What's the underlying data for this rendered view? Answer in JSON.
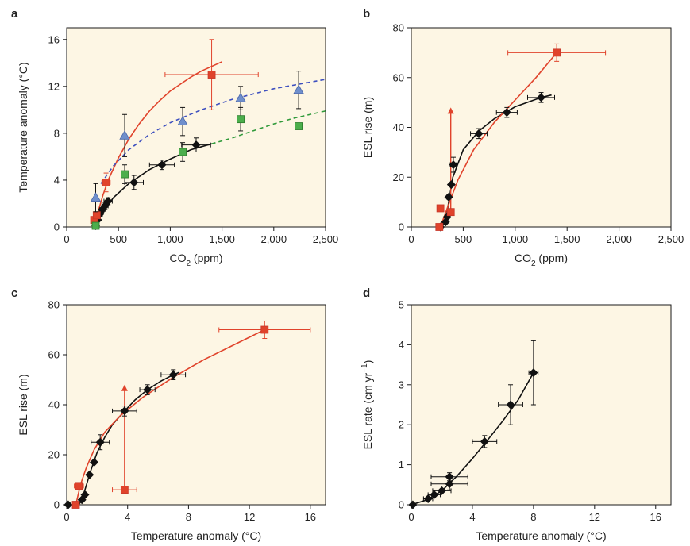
{
  "colors": {
    "black": "#111111",
    "red": "#e0432b",
    "red_marker": "#ea5a47",
    "blue": "#6f8fcc",
    "blue_dash": "#3d4fbf",
    "green": "#4cae4c",
    "green_dash": "#2f9a3a",
    "plot_bg": "#fdf6e4"
  },
  "chart_data": [
    {
      "panel": "a",
      "type": "scatter",
      "xlabel": "CO2 (ppm)",
      "ylabel": "Temperature anomaly (°C)",
      "xlim": [
        0,
        2500
      ],
      "ylim": [
        0,
        17
      ],
      "xticks": [
        0,
        500,
        1000,
        1500,
        2000,
        2500
      ],
      "xtick_labels": [
        "0",
        "500",
        "1,000",
        "1,500",
        "2,000",
        "2,500"
      ],
      "yticks": [
        0,
        4,
        8,
        12,
        16
      ],
      "ytick_labels": [
        "0",
        "4",
        "8",
        "12",
        "16"
      ],
      "series": [
        {
          "marker": "diamond",
          "color": "black",
          "points": [
            {
              "x": 280,
              "y": 0.1,
              "xerr": 0,
              "yerr": 0
            },
            {
              "x": 300,
              "y": 0.6,
              "xerr": 0,
              "yerr": 0
            },
            {
              "x": 320,
              "y": 1.1,
              "xerr": 25,
              "yerr": 0.2
            },
            {
              "x": 345,
              "y": 1.5,
              "xerr": 25,
              "yerr": 0.3
            },
            {
              "x": 370,
              "y": 1.8,
              "xerr": 30,
              "yerr": 0.3
            },
            {
              "x": 400,
              "y": 2.2,
              "xerr": 40,
              "yerr": 0.3
            },
            {
              "x": 650,
              "y": 3.8,
              "xerr": 90,
              "yerr": 0.6
            },
            {
              "x": 920,
              "y": 5.3,
              "xerr": 120,
              "yerr": 0.4
            },
            {
              "x": 1250,
              "y": 7.0,
              "xerr": 140,
              "yerr": 0.6
            }
          ]
        },
        {
          "marker": "square",
          "color": "red",
          "points": [
            {
              "x": 265,
              "y": 0.6,
              "xerr": 0,
              "yerr": 0
            },
            {
              "x": 290,
              "y": 1.0,
              "xerr": 0,
              "yerr": 0
            },
            {
              "x": 380,
              "y": 3.8,
              "xerr": 40,
              "yerr": 0.8
            },
            {
              "x": 1400,
              "y": 13.0,
              "xerr": 450,
              "yerr": 3.0
            }
          ]
        },
        {
          "marker": "triangle",
          "color": "blue",
          "points": [
            {
              "x": 280,
              "y": 2.5,
              "xerr": 0,
              "yerr": 1.2
            },
            {
              "x": 560,
              "y": 7.8,
              "xerr": 0,
              "yerr": 1.8
            },
            {
              "x": 1120,
              "y": 9.0,
              "xerr": 0,
              "yerr": 1.2
            },
            {
              "x": 1680,
              "y": 11.0,
              "xerr": 0,
              "yerr": 1.0
            },
            {
              "x": 2240,
              "y": 11.7,
              "xerr": 0,
              "yerr": 1.6
            }
          ]
        },
        {
          "marker": "square",
          "color": "green",
          "points": [
            {
              "x": 280,
              "y": 0.1,
              "xerr": 0,
              "yerr": 0
            },
            {
              "x": 560,
              "y": 4.5,
              "xerr": 0,
              "yerr": 0.8
            },
            {
              "x": 1120,
              "y": 6.4,
              "xerr": 0,
              "yerr": 0.8
            },
            {
              "x": 1680,
              "y": 9.2,
              "xerr": 0,
              "yerr": 1.0
            },
            {
              "x": 2240,
              "y": 8.6,
              "xerr": 0,
              "yerr": 0.2
            }
          ]
        }
      ],
      "curves": [
        {
          "color": "red",
          "dash": false,
          "points": [
            [
              270,
              0
            ],
            [
              300,
              1.2
            ],
            [
              350,
              2.7
            ],
            [
              400,
              4.0
            ],
            [
              500,
              5.9
            ],
            [
              600,
              7.5
            ],
            [
              700,
              8.8
            ],
            [
              800,
              9.9
            ],
            [
              900,
              10.8
            ],
            [
              1000,
              11.6
            ],
            [
              1100,
              12.2
            ],
            [
              1200,
              12.8
            ],
            [
              1300,
              13.3
            ],
            [
              1400,
              13.7
            ],
            [
              1500,
              14.1
            ]
          ]
        },
        {
          "color": "black",
          "dash": false,
          "points": [
            [
              270,
              0
            ],
            [
              350,
              1.2
            ],
            [
              450,
              2.5
            ],
            [
              600,
              3.7
            ],
            [
              800,
              4.9
            ],
            [
              1000,
              5.8
            ],
            [
              1200,
              6.6
            ],
            [
              1400,
              7.1
            ]
          ]
        },
        {
          "color": "blue_dash",
          "dash": true,
          "points": [
            [
              330,
              3.7
            ],
            [
              450,
              5.2
            ],
            [
              600,
              6.6
            ],
            [
              800,
              7.9
            ],
            [
              1000,
              8.9
            ],
            [
              1300,
              10.0
            ],
            [
              1600,
              10.9
            ],
            [
              2000,
              11.8
            ],
            [
              2500,
              12.6
            ]
          ]
        },
        {
          "color": "green_dash",
          "dash": true,
          "points": [
            [
              1400,
              7.1
            ],
            [
              1600,
              7.6
            ],
            [
              1800,
              8.2
            ],
            [
              2000,
              8.8
            ],
            [
              2200,
              9.3
            ],
            [
              2500,
              9.9
            ]
          ]
        }
      ]
    },
    {
      "panel": "b",
      "type": "scatter",
      "xlabel": "CO2 (ppm)",
      "ylabel": "ESL rise (m)",
      "xlim": [
        0,
        2500
      ],
      "ylim": [
        0,
        80
      ],
      "xticks": [
        0,
        500,
        1000,
        1500,
        2000,
        2500
      ],
      "xtick_labels": [
        "0",
        "500",
        "1,000",
        "1,500",
        "2,000",
        "2,500"
      ],
      "yticks": [
        0,
        20,
        40,
        60,
        80
      ],
      "ytick_labels": [
        "0",
        "20",
        "40",
        "60",
        "80"
      ],
      "series": [
        {
          "marker": "diamond",
          "color": "black",
          "points": [
            {
              "x": 280,
              "y": 0,
              "xerr": 0,
              "yerr": 0
            },
            {
              "x": 330,
              "y": 2,
              "xerr": 0,
              "yerr": 0
            },
            {
              "x": 345,
              "y": 4,
              "xerr": 0,
              "yerr": 0
            },
            {
              "x": 360,
              "y": 12,
              "xerr": 20,
              "yerr": 0
            },
            {
              "x": 385,
              "y": 17,
              "xerr": 20,
              "yerr": 0
            },
            {
              "x": 405,
              "y": 25,
              "xerr": 30,
              "yerr": 3
            },
            {
              "x": 650,
              "y": 37.5,
              "xerr": 80,
              "yerr": 2
            },
            {
              "x": 920,
              "y": 46,
              "xerr": 100,
              "yerr": 2
            },
            {
              "x": 1250,
              "y": 52,
              "xerr": 130,
              "yerr": 2
            }
          ]
        },
        {
          "marker": "square",
          "color": "red",
          "points": [
            {
              "x": 270,
              "y": 0,
              "xerr": 0,
              "yerr": 0
            },
            {
              "x": 280,
              "y": 7.5,
              "xerr": 0,
              "yerr": 0
            },
            {
              "x": 380,
              "y": 6,
              "xerr": 30,
              "yerr": 0
            },
            {
              "x": 1400,
              "y": 70,
              "xerr": 470,
              "yerr": 3.5
            }
          ]
        }
      ],
      "curves": [
        {
          "color": "black",
          "dash": false,
          "points": [
            [
              290,
              0
            ],
            [
              330,
              2
            ],
            [
              360,
              10
            ],
            [
              400,
              20
            ],
            [
              500,
              31
            ],
            [
              650,
              38.5
            ],
            [
              800,
              43.5
            ],
            [
              1000,
              48.3
            ],
            [
              1250,
              52
            ],
            [
              1350,
              53
            ]
          ]
        },
        {
          "color": "red",
          "dash": false,
          "points": [
            [
              280,
              0
            ],
            [
              350,
              8
            ],
            [
              450,
              19
            ],
            [
              600,
              31
            ],
            [
              800,
              42
            ],
            [
              1000,
              51
            ],
            [
              1200,
              60
            ],
            [
              1400,
              70
            ]
          ]
        }
      ],
      "arrows": [
        {
          "color": "red",
          "x": 380,
          "y_from": 6,
          "y_to": 48
        }
      ]
    },
    {
      "panel": "c",
      "type": "scatter",
      "xlabel": "Temperature anomaly (°C)",
      "ylabel": "ESL rise (m)",
      "xlim": [
        0,
        17
      ],
      "ylim": [
        0,
        80
      ],
      "xticks": [
        0,
        4,
        8,
        12,
        16
      ],
      "xtick_labels": [
        "0",
        "4",
        "8",
        "12",
        "16"
      ],
      "yticks": [
        0,
        20,
        40,
        60,
        80
      ],
      "ytick_labels": [
        "0",
        "20",
        "40",
        "60",
        "80"
      ],
      "series": [
        {
          "marker": "diamond",
          "color": "black",
          "points": [
            {
              "x": 0.1,
              "y": 0,
              "xerr": 0,
              "yerr": 0
            },
            {
              "x": 1.0,
              "y": 2,
              "xerr": 0,
              "yerr": 0
            },
            {
              "x": 1.2,
              "y": 4,
              "xerr": 0,
              "yerr": 0
            },
            {
              "x": 1.5,
              "y": 12,
              "xerr": 0,
              "yerr": 0
            },
            {
              "x": 1.8,
              "y": 17,
              "xerr": 0,
              "yerr": 0
            },
            {
              "x": 2.2,
              "y": 25,
              "xerr": 0.6,
              "yerr": 3
            },
            {
              "x": 3.8,
              "y": 37.5,
              "xerr": 0.8,
              "yerr": 2
            },
            {
              "x": 5.3,
              "y": 46,
              "xerr": 0.5,
              "yerr": 2
            },
            {
              "x": 7.0,
              "y": 52,
              "xerr": 0.8,
              "yerr": 2
            }
          ]
        },
        {
          "marker": "square",
          "color": "red",
          "points": [
            {
              "x": 0.6,
              "y": 0,
              "xerr": 0,
              "yerr": 0
            },
            {
              "x": 0.8,
              "y": 7.5,
              "xerr": 0.3,
              "yerr": 0
            },
            {
              "x": 3.8,
              "y": 6,
              "xerr": 0.8,
              "yerr": 0
            },
            {
              "x": 13.0,
              "y": 70,
              "xerr": 3.0,
              "yerr": 3.5
            }
          ]
        }
      ],
      "curves": [
        {
          "color": "black",
          "dash": false,
          "points": [
            [
              0.8,
              0
            ],
            [
              1.0,
              2
            ],
            [
              1.3,
              8
            ],
            [
              1.6,
              14
            ],
            [
              2.0,
              21
            ],
            [
              2.5,
              27
            ],
            [
              3.0,
              32
            ],
            [
              3.8,
              37.5
            ],
            [
              4.5,
              42
            ],
            [
              5.3,
              46
            ],
            [
              6.2,
              49.5
            ],
            [
              7.0,
              52
            ],
            [
              7.4,
              53
            ]
          ]
        },
        {
          "color": "red",
          "dash": false,
          "points": [
            [
              0.6,
              0
            ],
            [
              0.9,
              8
            ],
            [
              1.3,
              15
            ],
            [
              1.8,
              22
            ],
            [
              2.5,
              29
            ],
            [
              3.5,
              35.5
            ],
            [
              5,
              43
            ],
            [
              7,
              51
            ],
            [
              9,
              58
            ],
            [
              11,
              64
            ],
            [
              13,
              70
            ]
          ]
        }
      ],
      "arrows": [
        {
          "color": "red",
          "x": 3.8,
          "y_from": 6,
          "y_to": 48
        }
      ]
    },
    {
      "panel": "d",
      "type": "scatter",
      "xlabel": "Temperature anomaly (°C)",
      "ylabel": "ESL rate (cm yr−1)",
      "xlim": [
        0,
        17
      ],
      "ylim": [
        0,
        5
      ],
      "xticks": [
        0,
        4,
        8,
        12,
        16
      ],
      "xtick_labels": [
        "0",
        "4",
        "8",
        "12",
        "16"
      ],
      "yticks": [
        0,
        1,
        2,
        3,
        4,
        5
      ],
      "ytick_labels": [
        "0",
        "1",
        "2",
        "3",
        "4",
        "5"
      ],
      "series": [
        {
          "marker": "diamond",
          "color": "black",
          "points": [
            {
              "x": 0.1,
              "y": 0,
              "xerr": 0,
              "yerr": 0
            },
            {
              "x": 1.1,
              "y": 0.15,
              "xerr": 0.3,
              "yerr": 0
            },
            {
              "x": 1.5,
              "y": 0.25,
              "xerr": 0.4,
              "yerr": 0
            },
            {
              "x": 2.0,
              "y": 0.35,
              "xerr": 0.6,
              "yerr": 0
            },
            {
              "x": 2.5,
              "y": 0.52,
              "xerr": 1.2,
              "yerr": 0.15
            },
            {
              "x": 2.5,
              "y": 0.7,
              "xerr": 1.2,
              "yerr": 0.1
            },
            {
              "x": 4.8,
              "y": 1.58,
              "xerr": 0.8,
              "yerr": 0.15
            },
            {
              "x": 6.5,
              "y": 2.5,
              "xerr": 0.8,
              "yerr": 0.5
            },
            {
              "x": 8.0,
              "y": 3.3,
              "xerr": 0.3,
              "yerr": 0.8
            }
          ]
        }
      ],
      "curves": [
        {
          "color": "black",
          "dash": false,
          "points": [
            [
              0,
              0
            ],
            [
              1,
              0.12
            ],
            [
              2,
              0.35
            ],
            [
              3,
              0.72
            ],
            [
              4,
              1.15
            ],
            [
              5,
              1.62
            ],
            [
              6,
              2.1
            ],
            [
              7,
              2.62
            ],
            [
              8,
              3.3
            ]
          ]
        }
      ]
    }
  ]
}
